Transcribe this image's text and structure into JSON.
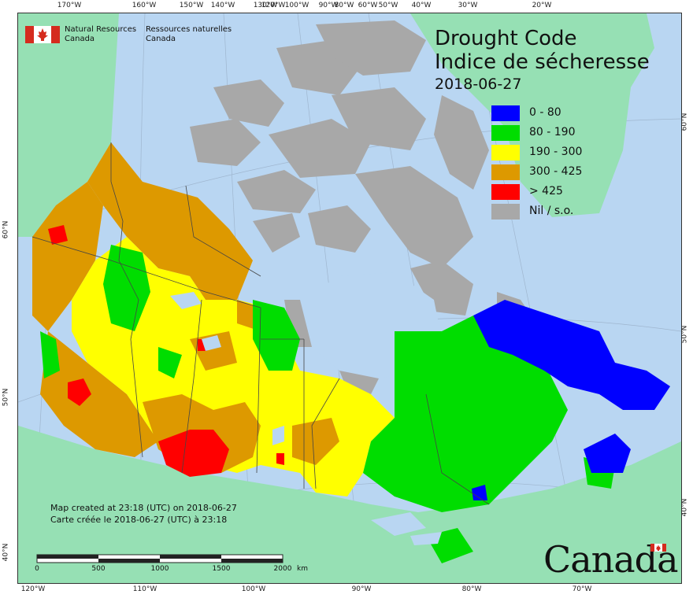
{
  "agency": {
    "name_en_line1": "Natural Resources",
    "name_en_line2": "Canada",
    "name_fr_line1": "Ressources naturelles",
    "name_fr_line2": "Canada"
  },
  "title": {
    "line1": "Drought Code",
    "line2": "Indice de sécheresse",
    "date": "2018-06-27"
  },
  "legend": [
    {
      "label": "0 - 80",
      "color": "#0000ff"
    },
    {
      "label": "80 - 190",
      "color": "#00dd00"
    },
    {
      "label": "190 - 300",
      "color": "#ffff00"
    },
    {
      "label": "300 - 425",
      "color": "#dd9900"
    },
    {
      "label": "> 425",
      "color": "#ff0000"
    },
    {
      "label": "Nil / s.o.",
      "color": "#a8a8a8"
    }
  ],
  "credit": {
    "line1": "Map created at 23:18 (UTC) on 2018-06-27",
    "line2": "Carte créée le 2018-06-27 (UTC) à 23:18"
  },
  "scalebar": {
    "labels": [
      "0",
      "500",
      "1000",
      "1500",
      "2000"
    ],
    "unit": "km"
  },
  "wordmark": "Canada",
  "graticule": {
    "top": [
      "170°W",
      "160°W",
      "150°W",
      "140°W",
      "130°W",
      "120°W",
      "100°W",
      "90°W",
      "80°W",
      "60°W",
      "50°W",
      "40°W",
      "30°W",
      "20°W"
    ],
    "bottom": [
      "120°W",
      "110°W",
      "100°W",
      "90°W",
      "80°W",
      "70°W"
    ],
    "left": [
      "60°N",
      "50°N",
      "40°N"
    ],
    "right": [
      "60°N",
      "50°N",
      "40°N"
    ]
  },
  "colors": {
    "water": "#b9d6f2",
    "foreign_land": "#96e0b4",
    "nil": "#a8a8a8"
  }
}
